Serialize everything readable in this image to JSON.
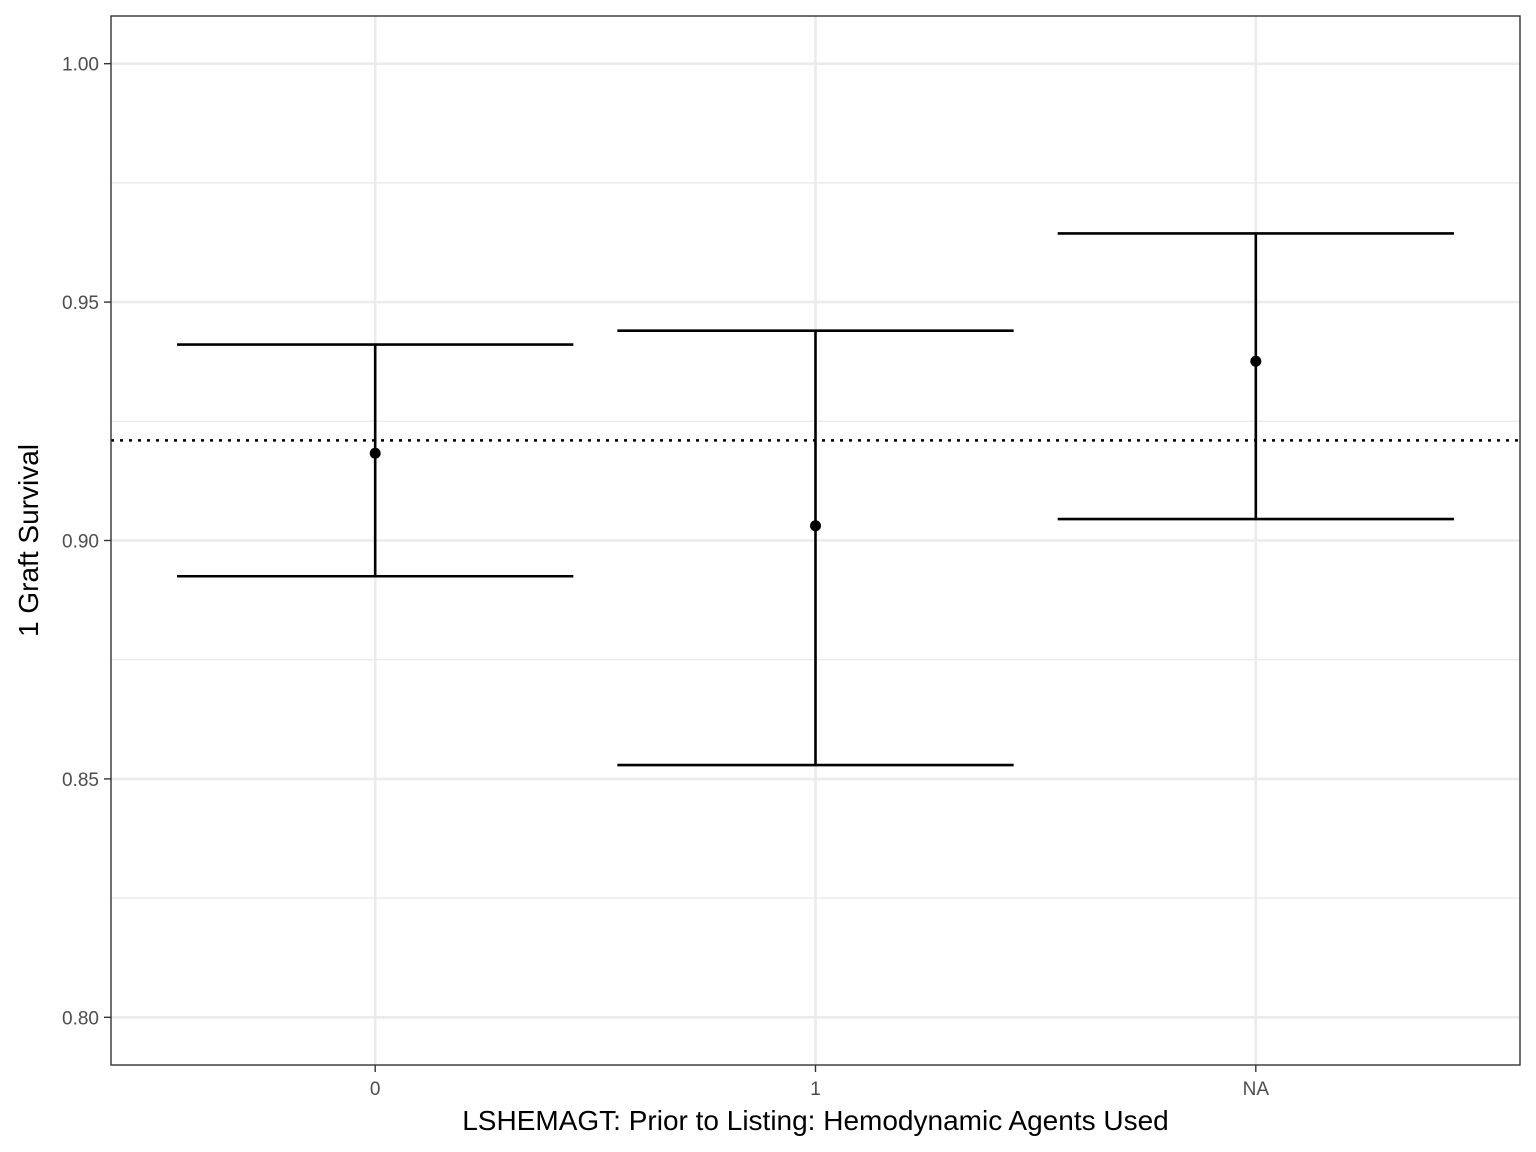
{
  "chart_data": {
    "type": "errorbar",
    "xlabel": "LSHEMAGT: Prior to Listing: Hemodynamic Agents Used",
    "ylabel": "1 Graft Survival",
    "categories": [
      "0",
      "1",
      "NA"
    ],
    "estimates": [
      0.9183,
      0.9031,
      0.9376
    ],
    "lower": [
      0.8925,
      0.8529,
      0.9045
    ],
    "upper": [
      0.9411,
      0.944,
      0.9644
    ],
    "reference_line": 0.921,
    "ylim": [
      0.79,
      1.01
    ],
    "yticks": [
      0.8,
      0.85,
      0.9,
      0.95,
      1.0
    ],
    "ytick_labels": [
      "0.80",
      "0.85",
      "0.90",
      "0.95",
      "1.00"
    ],
    "grid": true,
    "legend": "none",
    "colors": {
      "mark": "#000000",
      "grid": "#ebebeb",
      "panel_border": "#333333",
      "tick_text": "#4d4d4d"
    }
  }
}
